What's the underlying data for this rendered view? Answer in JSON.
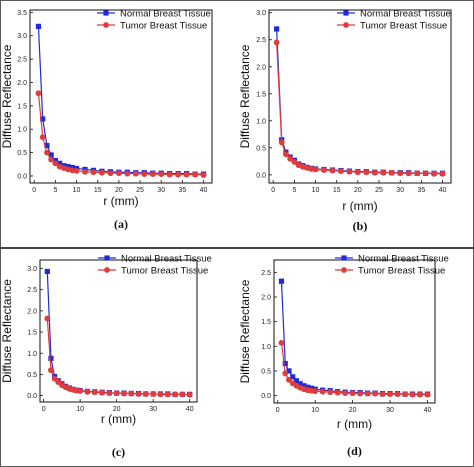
{
  "colors": {
    "normal": "#1f2bd6",
    "tumor": "#e23b3b",
    "axis": "#111111"
  },
  "chart_data": [
    {
      "type": "line",
      "panel_label": "(a)",
      "xlabel": "r (mm)",
      "ylabel": "Diffuse Reflectance",
      "xlim": [
        -1,
        42
      ],
      "ylim": [
        -0.15,
        3.55
      ],
      "xticks": [
        0,
        5,
        10,
        15,
        20,
        25,
        30,
        35,
        40
      ],
      "yticks": [
        0.0,
        0.5,
        1.0,
        1.5,
        2.0,
        2.5,
        3.0,
        3.5
      ],
      "ytick_labels": [
        "0.0",
        "0.5",
        "1.0",
        "1.5",
        "2.0",
        "2.5",
        "3.0",
        "3.5"
      ],
      "legend_position": "top-right",
      "series": [
        {
          "name": "Normal Breast Tissue",
          "marker": "square",
          "x": [
            1,
            2,
            3,
            4,
            5,
            6,
            7,
            8,
            9,
            10,
            12,
            14,
            16,
            18,
            20,
            22,
            24,
            26,
            28,
            30,
            32,
            34,
            36,
            38,
            40
          ],
          "values": [
            3.2,
            1.22,
            0.65,
            0.45,
            0.33,
            0.27,
            0.22,
            0.2,
            0.18,
            0.16,
            0.14,
            0.12,
            0.1,
            0.09,
            0.08,
            0.08,
            0.07,
            0.07,
            0.06,
            0.06,
            0.05,
            0.05,
            0.05,
            0.04,
            0.04
          ]
        },
        {
          "name": "Tumor Breast Tissue",
          "marker": "circle",
          "x": [
            1,
            2,
            3,
            4,
            5,
            6,
            7,
            8,
            9,
            10,
            12,
            14,
            16,
            18,
            20,
            22,
            24,
            26,
            28,
            30,
            32,
            34,
            36,
            38,
            40
          ],
          "values": [
            1.77,
            0.83,
            0.5,
            0.35,
            0.27,
            0.2,
            0.17,
            0.14,
            0.12,
            0.11,
            0.09,
            0.08,
            0.07,
            0.06,
            0.06,
            0.05,
            0.05,
            0.04,
            0.04,
            0.04,
            0.03,
            0.03,
            0.03,
            0.03,
            0.02
          ]
        }
      ]
    },
    {
      "type": "line",
      "panel_label": "(b)",
      "xlabel": "r (mm)",
      "ylabel": "Diffuse Reflectance",
      "xlim": [
        -1,
        42
      ],
      "ylim": [
        -0.15,
        3.05
      ],
      "xticks": [
        0,
        5,
        10,
        15,
        20,
        25,
        30,
        35,
        40
      ],
      "yticks": [
        0.0,
        0.5,
        1.0,
        1.5,
        2.0,
        2.5,
        3.0
      ],
      "ytick_labels": [
        "0.0",
        "0.5",
        "1.0",
        "1.5",
        "2.0",
        "2.5",
        "3.0"
      ],
      "legend_position": "top-right",
      "series": [
        {
          "name": "Normal Breast Tissue",
          "marker": "square",
          "x": [
            0.8,
            2,
            3,
            4,
            5,
            6,
            7,
            8,
            9,
            10,
            12,
            14,
            16,
            18,
            20,
            22,
            24,
            26,
            28,
            30,
            32,
            34,
            36,
            38,
            40
          ],
          "values": [
            2.7,
            0.65,
            0.42,
            0.33,
            0.27,
            0.2,
            0.17,
            0.14,
            0.12,
            0.11,
            0.1,
            0.09,
            0.08,
            0.07,
            0.06,
            0.06,
            0.05,
            0.05,
            0.04,
            0.04,
            0.04,
            0.03,
            0.03,
            0.03,
            0.03
          ]
        },
        {
          "name": "Tumor Breast Tissue",
          "marker": "circle",
          "x": [
            0.8,
            2,
            3,
            4,
            5,
            6,
            7,
            8,
            9,
            10,
            12,
            14,
            16,
            18,
            20,
            22,
            24,
            26,
            28,
            30,
            32,
            34,
            36,
            38,
            40
          ],
          "values": [
            2.45,
            0.6,
            0.38,
            0.3,
            0.24,
            0.18,
            0.15,
            0.13,
            0.11,
            0.1,
            0.09,
            0.08,
            0.07,
            0.06,
            0.05,
            0.05,
            0.04,
            0.04,
            0.04,
            0.03,
            0.03,
            0.03,
            0.03,
            0.02,
            0.02
          ]
        }
      ]
    },
    {
      "type": "line",
      "panel_label": "(c)",
      "xlabel": "r (mm)",
      "ylabel": "Diffuse Reflectance",
      "xlim": [
        -1,
        42
      ],
      "ylim": [
        -0.15,
        3.2
      ],
      "xticks": [
        0,
        10,
        20,
        30,
        40
      ],
      "yticks": [
        0.0,
        0.5,
        1.0,
        1.5,
        2.0,
        2.5,
        3.0
      ],
      "ytick_labels": [
        "0.0",
        "0.5",
        "1.0",
        "1.5",
        "2.0",
        "2.5",
        "3.0"
      ],
      "legend_position": "top-right",
      "series": [
        {
          "name": "Normal Breast Tissue",
          "marker": "square",
          "x": [
            1,
            2,
            3,
            4,
            5,
            6,
            7,
            8,
            9,
            10,
            12,
            14,
            16,
            18,
            20,
            22,
            24,
            26,
            28,
            30,
            32,
            34,
            36,
            38,
            40
          ],
          "values": [
            2.93,
            0.88,
            0.45,
            0.35,
            0.28,
            0.22,
            0.18,
            0.15,
            0.13,
            0.12,
            0.1,
            0.09,
            0.08,
            0.07,
            0.06,
            0.06,
            0.05,
            0.05,
            0.04,
            0.04,
            0.04,
            0.04,
            0.03,
            0.03,
            0.03
          ]
        },
        {
          "name": "Tumor Breast Tissue",
          "marker": "circle",
          "x": [
            1,
            2,
            3,
            4,
            5,
            6,
            7,
            8,
            9,
            10,
            12,
            14,
            16,
            18,
            20,
            22,
            24,
            26,
            28,
            30,
            32,
            34,
            36,
            38,
            40
          ],
          "values": [
            1.82,
            0.6,
            0.4,
            0.32,
            0.25,
            0.2,
            0.16,
            0.14,
            0.12,
            0.11,
            0.09,
            0.08,
            0.07,
            0.06,
            0.06,
            0.05,
            0.05,
            0.04,
            0.04,
            0.04,
            0.03,
            0.03,
            0.03,
            0.03,
            0.02
          ]
        }
      ]
    },
    {
      "type": "line",
      "panel_label": "(d)",
      "xlabel": "r (mm)",
      "ylabel": "Diffuse Reflectance",
      "xlim": [
        -1,
        42
      ],
      "ylim": [
        -0.15,
        2.75
      ],
      "xticks": [
        0,
        10,
        20,
        30,
        40
      ],
      "yticks": [
        0.0,
        0.5,
        1.0,
        1.5,
        2.0,
        2.5
      ],
      "ytick_labels": [
        "0.0",
        "0.5",
        "1.0",
        "1.5",
        "2.0",
        "2.5"
      ],
      "legend_position": "top-right",
      "series": [
        {
          "name": "Normal Breast Tissue",
          "marker": "square",
          "x": [
            1,
            2,
            3,
            4,
            5,
            6,
            7,
            8,
            9,
            10,
            12,
            14,
            16,
            18,
            20,
            22,
            24,
            26,
            28,
            30,
            32,
            34,
            36,
            38,
            40
          ],
          "values": [
            2.32,
            0.65,
            0.5,
            0.38,
            0.3,
            0.24,
            0.2,
            0.17,
            0.15,
            0.13,
            0.11,
            0.1,
            0.08,
            0.07,
            0.06,
            0.06,
            0.05,
            0.05,
            0.04,
            0.04,
            0.04,
            0.03,
            0.03,
            0.03,
            0.03
          ]
        },
        {
          "name": "Tumor Breast Tissue",
          "marker": "circle",
          "x": [
            1,
            2,
            3,
            4,
            5,
            6,
            7,
            8,
            9,
            10,
            12,
            14,
            16,
            18,
            20,
            22,
            24,
            26,
            28,
            30,
            32,
            34,
            36,
            38,
            40
          ],
          "values": [
            1.07,
            0.45,
            0.32,
            0.25,
            0.2,
            0.16,
            0.13,
            0.11,
            0.1,
            0.09,
            0.08,
            0.07,
            0.06,
            0.05,
            0.05,
            0.04,
            0.04,
            0.04,
            0.03,
            0.03,
            0.03,
            0.03,
            0.02,
            0.02,
            0.02
          ]
        }
      ]
    }
  ]
}
